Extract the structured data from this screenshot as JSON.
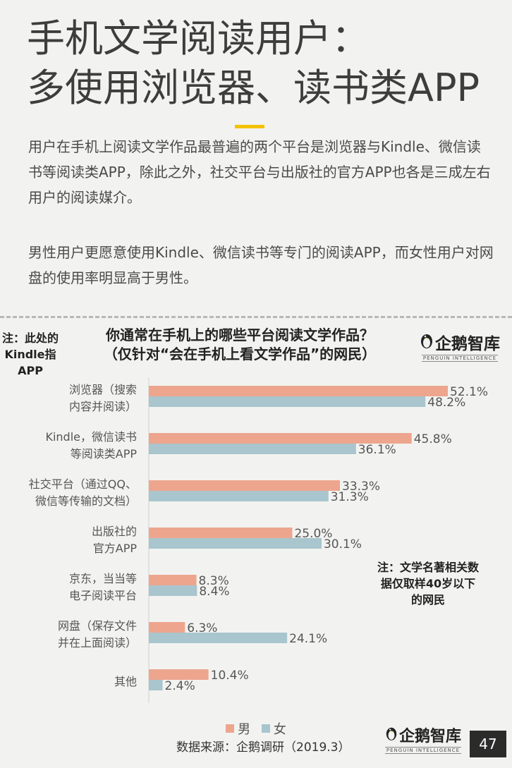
{
  "header": {
    "title_line1": "手机文学阅读用户：",
    "title_line2": "多使用浏览器、读书类APP",
    "paragraph1": "用户在手机上阅读文学作品最普遍的两个平台是浏览器与Kindle、微信读书等阅读类APP，除此之外，社交平台与出版社的官方APP也各是三成左右用户的阅读媒介。",
    "paragraph2": "男性用户更愿意使用Kindle、微信读书等专门的阅读APP，而女性用户对网盘的使用率明显高于男性。"
  },
  "note_left": "注：此处的Kindle指APP",
  "note_right": "注：文学名著相关数据仅取样40岁以下的网民",
  "logo": {
    "name": "企鹅智库",
    "subtitle": "PENGUIN INTELLIGENCE"
  },
  "legend": {
    "male": "男",
    "female": "女"
  },
  "source": "数据来源：企鹅调研（2019.3）",
  "page_number": "47",
  "colors": {
    "male": "#eda58e",
    "female": "#a9c5cd",
    "accent": "#f2c200",
    "background": "#f2f3f0"
  },
  "chart_data": {
    "type": "bar",
    "orientation": "horizontal",
    "title": "你通常在手机上的哪些平台阅读文学作品？（仅针对“会在手机上看文学作品”的网民）",
    "title_line1": "你通常在手机上的哪些平台阅读文学作品？",
    "title_line2": "（仅针对“会在手机上看文学作品”的网民）",
    "categories": [
      [
        "浏览器（搜索",
        "内容并阅读）"
      ],
      [
        "Kindle，微信读书",
        "等阅读类APP"
      ],
      [
        "社交平台（通过QQ、",
        "微信等传输的文档）"
      ],
      [
        "出版社的",
        "官方APP"
      ],
      [
        "京东，当当等",
        "电子阅读平台"
      ],
      [
        "网盘（保存文件",
        "并在上面阅读）"
      ],
      [
        "其他"
      ]
    ],
    "series": [
      {
        "name": "男",
        "values": [
          52.1,
          45.8,
          33.3,
          25.0,
          8.3,
          6.3,
          10.4
        ],
        "labels": [
          "52.1%",
          "45.8%",
          "33.3%",
          "25.0%",
          "8.3%",
          "6.3%",
          "10.4%"
        ]
      },
      {
        "name": "女",
        "values": [
          48.2,
          36.1,
          31.3,
          30.1,
          8.4,
          24.1,
          2.4
        ],
        "labels": [
          "48.2%",
          "36.1%",
          "31.3%",
          "30.1%",
          "8.4%",
          "24.1%",
          "2.4%"
        ]
      }
    ],
    "value_unit": "%",
    "xlim": [
      0,
      52.1
    ],
    "grid": false,
    "legend_position": "bottom"
  }
}
